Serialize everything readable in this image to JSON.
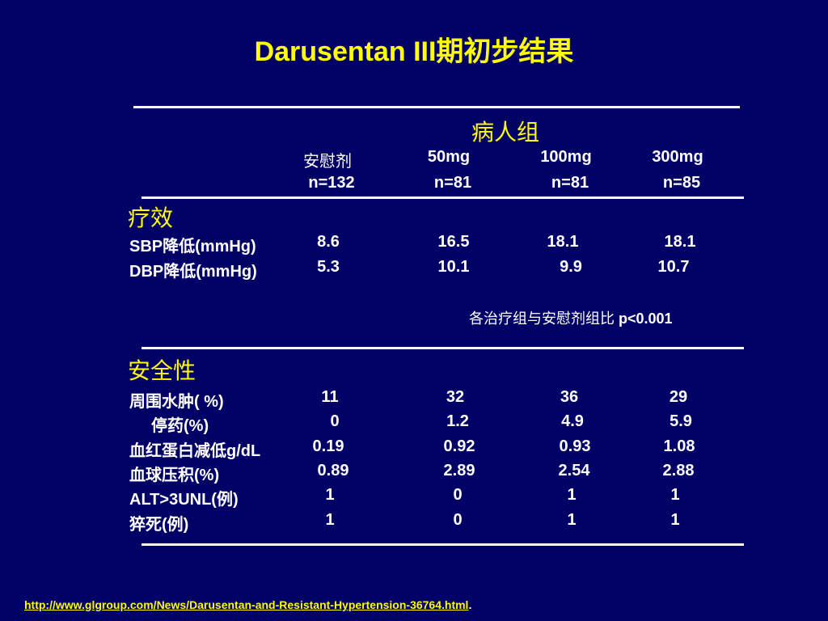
{
  "title": "Darusentan III期初步结果",
  "group_header": "病人组",
  "columns": [
    {
      "dose": "安慰剂",
      "n": "n=132"
    },
    {
      "dose": "50mg",
      "n": "n=81"
    },
    {
      "dose": "100mg",
      "n": "n=81"
    },
    {
      "dose": "300mg",
      "n": "n=85"
    }
  ],
  "efficacy": {
    "heading": "疗效",
    "rows": [
      {
        "label": "SBP降低(mmHg)",
        "values": [
          "8.6",
          "16.5",
          "18.1",
          "18.1"
        ]
      },
      {
        "label": "DBP降低(mmHg)",
        "values": [
          "5.3",
          "10.1",
          "9.9",
          "10.7"
        ]
      }
    ],
    "note": "各治疗组与安慰剂组比",
    "p_value": "p<0.001"
  },
  "safety": {
    "heading": "安全性",
    "rows": [
      {
        "label": "周围水肿( %)",
        "values": [
          "11",
          "32",
          "36",
          "29"
        ]
      },
      {
        "label": "停药(%)",
        "values": [
          "0",
          "1.2",
          "4.9",
          "5.9"
        ]
      },
      {
        "label": "血红蛋白减低g/dL",
        "values": [
          "0.19",
          "0.92",
          "0.93",
          "1.08"
        ]
      },
      {
        "label": "血球压积(%)",
        "values": [
          "0.89",
          "2.89",
          "2.54",
          "2.88"
        ]
      },
      {
        "label": "ALT>3UNL(例)",
        "values": [
          "1",
          "0",
          "1",
          "1"
        ]
      },
      {
        "label": "猝死(例)",
        "values": [
          "1",
          "0",
          "1",
          "1"
        ]
      }
    ]
  },
  "source_url": "http://www.glgroup.com/News/Darusentan-and-Resistant-Hypertension-36764.html",
  "source_suffix": "."
}
